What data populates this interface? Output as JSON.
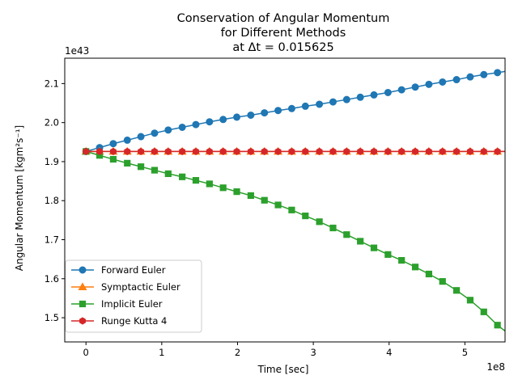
{
  "chart_data": {
    "type": "line",
    "title_lines": [
      "Conservation of Angular Momentum",
      "for Different Methods",
      "at Δt = 0.015625"
    ],
    "xlabel": "Time [sec]",
    "ylabel": "Angular Momentum [kgm²s⁻¹]",
    "x_scale_label": "1e8",
    "y_scale_label": "1e43",
    "xlim": [
      -0.28,
      5.53
    ],
    "ylim": [
      1.438,
      2.165
    ],
    "x_ticks": [
      0,
      1,
      2,
      3,
      4,
      5
    ],
    "x_tick_labels": [
      "0",
      "1",
      "2",
      "3",
      "4",
      "5"
    ],
    "y_ticks": [
      1.5,
      1.6,
      1.7,
      1.8,
      1.9,
      2.0,
      2.1
    ],
    "y_tick_labels": [
      "1.5",
      "1.6",
      "1.7",
      "1.8",
      "1.9",
      "2.0",
      "2.1"
    ],
    "grid": false,
    "legend_position": "lower-left",
    "x": [
      0,
      0.18,
      0.36,
      0.545,
      0.725,
      0.905,
      1.085,
      1.27,
      1.45,
      1.63,
      1.81,
      1.99,
      2.175,
      2.355,
      2.535,
      2.715,
      2.895,
      3.08,
      3.26,
      3.44,
      3.62,
      3.8,
      3.985,
      4.165,
      4.345,
      4.525,
      4.705,
      4.89,
      5.07,
      5.25,
      5.43
    ],
    "x_end": 5.53,
    "series": [
      {
        "name": "Forward Euler",
        "color": "#1f77b4",
        "marker": "circle",
        "values": [
          1.926,
          1.936,
          1.946,
          1.955,
          1.964,
          1.973,
          1.981,
          1.988,
          1.995,
          2.002,
          2.008,
          2.014,
          2.019,
          2.025,
          2.031,
          2.036,
          2.042,
          2.047,
          2.053,
          2.059,
          2.065,
          2.071,
          2.077,
          2.084,
          2.091,
          2.098,
          2.104,
          2.11,
          2.117,
          2.123,
          2.128
        ],
        "end_value": 2.131
      },
      {
        "name": "Symptactic Euler",
        "color": "#ff7f0e",
        "marker": "triangle",
        "values": [
          1.926,
          1.926,
          1.926,
          1.926,
          1.926,
          1.926,
          1.926,
          1.926,
          1.926,
          1.926,
          1.926,
          1.926,
          1.926,
          1.926,
          1.926,
          1.926,
          1.926,
          1.926,
          1.926,
          1.926,
          1.926,
          1.926,
          1.926,
          1.926,
          1.926,
          1.926,
          1.926,
          1.926,
          1.926,
          1.926,
          1.926
        ],
        "end_value": 1.926
      },
      {
        "name": "Implicit Euler",
        "color": "#2ca02c",
        "marker": "square",
        "values": [
          1.926,
          1.916,
          1.906,
          1.896,
          1.887,
          1.878,
          1.869,
          1.861,
          1.852,
          1.843,
          1.833,
          1.823,
          1.813,
          1.801,
          1.789,
          1.776,
          1.761,
          1.746,
          1.73,
          1.713,
          1.696,
          1.679,
          1.662,
          1.647,
          1.63,
          1.612,
          1.593,
          1.57,
          1.545,
          1.515,
          1.481
        ],
        "end_value": 1.466
      },
      {
        "name": "Runge Kutta 4",
        "color": "#d62728",
        "marker": "hexagon",
        "values": [
          1.926,
          1.926,
          1.926,
          1.926,
          1.926,
          1.926,
          1.926,
          1.926,
          1.926,
          1.926,
          1.926,
          1.926,
          1.926,
          1.926,
          1.926,
          1.926,
          1.926,
          1.926,
          1.926,
          1.926,
          1.926,
          1.926,
          1.926,
          1.926,
          1.926,
          1.926,
          1.926,
          1.926,
          1.926,
          1.926,
          1.926
        ],
        "end_value": 1.926
      }
    ]
  }
}
